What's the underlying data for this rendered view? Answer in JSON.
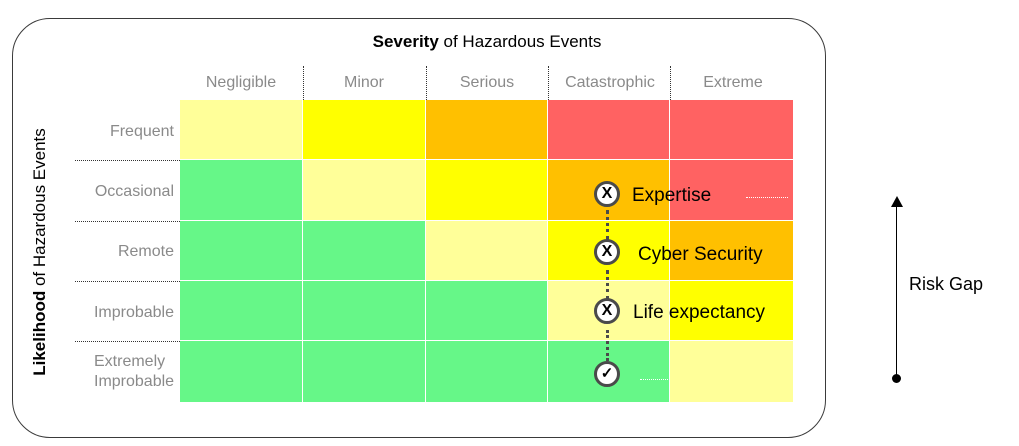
{
  "title": {
    "strong": "Severity",
    "rest": " of Hazardous Events"
  },
  "y_axis": {
    "strong": "Likelihood",
    "rest": " of Hazardous Events"
  },
  "columns": [
    "Negligible",
    "Minor",
    "Serious",
    "Catastrophic",
    "Extreme"
  ],
  "rows": [
    {
      "label": "Frequent"
    },
    {
      "label": "Occasional"
    },
    {
      "label": "Remote"
    },
    {
      "label": "Improbable"
    },
    {
      "label": "Extremely Improbable"
    }
  ],
  "cell_colors": [
    [
      "#ffff99",
      "#ffff00",
      "#ffc000",
      "#ff6262",
      "#ff6262"
    ],
    [
      "#66f788",
      "#ffff99",
      "#ffff00",
      "#ffc000",
      "#ff6262"
    ],
    [
      "#66f788",
      "#66f788",
      "#ffff99",
      "#ffff00",
      "#ffc000"
    ],
    [
      "#66f788",
      "#66f788",
      "#66f788",
      "#ffff99",
      "#ffff00"
    ],
    [
      "#66f788",
      "#66f788",
      "#66f788",
      "#66f788",
      "#ffff99"
    ]
  ],
  "markers": [
    {
      "symbol": "X",
      "label": "Expertise"
    },
    {
      "symbol": "X",
      "label": "Cyber Security"
    },
    {
      "symbol": "X",
      "label": "Life expectancy"
    },
    {
      "symbol": "✓",
      "label": ""
    }
  ],
  "risk_gap": "Risk Gap"
}
